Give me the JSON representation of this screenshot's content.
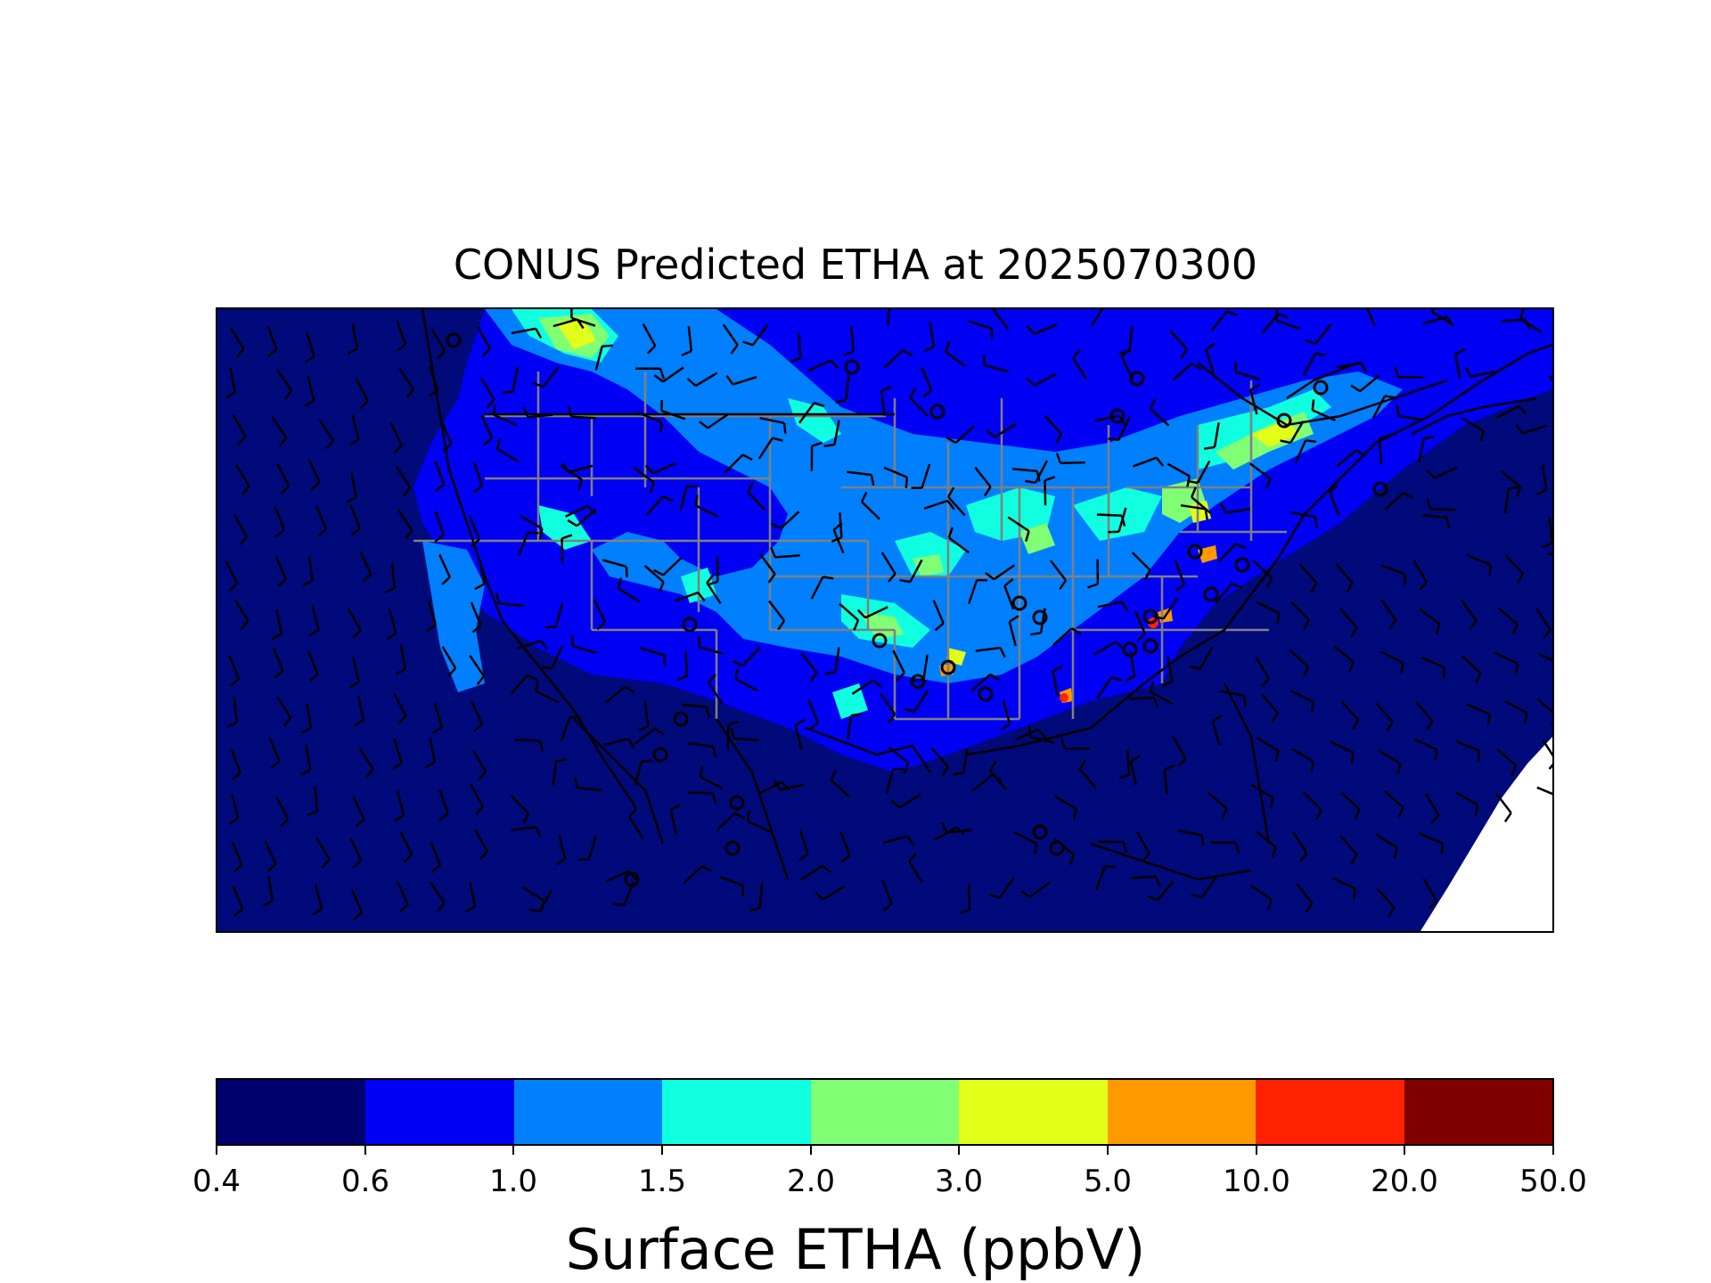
{
  "title": "CONUS Predicted ETHA at 2025070300",
  "colorbar": {
    "label": "Surface ETHA (ppbV)",
    "ticks": [
      "0.4",
      "0.6",
      "1.0",
      "1.5",
      "2.0",
      "3.0",
      "5.0",
      "10.0",
      "20.0",
      "50.0"
    ],
    "colors": [
      "#00006e",
      "#0000f5",
      "#0080ff",
      "#10ffe0",
      "#80ff75",
      "#e2ff1a",
      "#ff9900",
      "#ff2200",
      "#800000"
    ]
  },
  "map": {
    "background_level_color": "#000a7a",
    "features": [
      "state-boundaries",
      "coastlines",
      "wind-barbs",
      "calm-wind-circles"
    ]
  }
}
